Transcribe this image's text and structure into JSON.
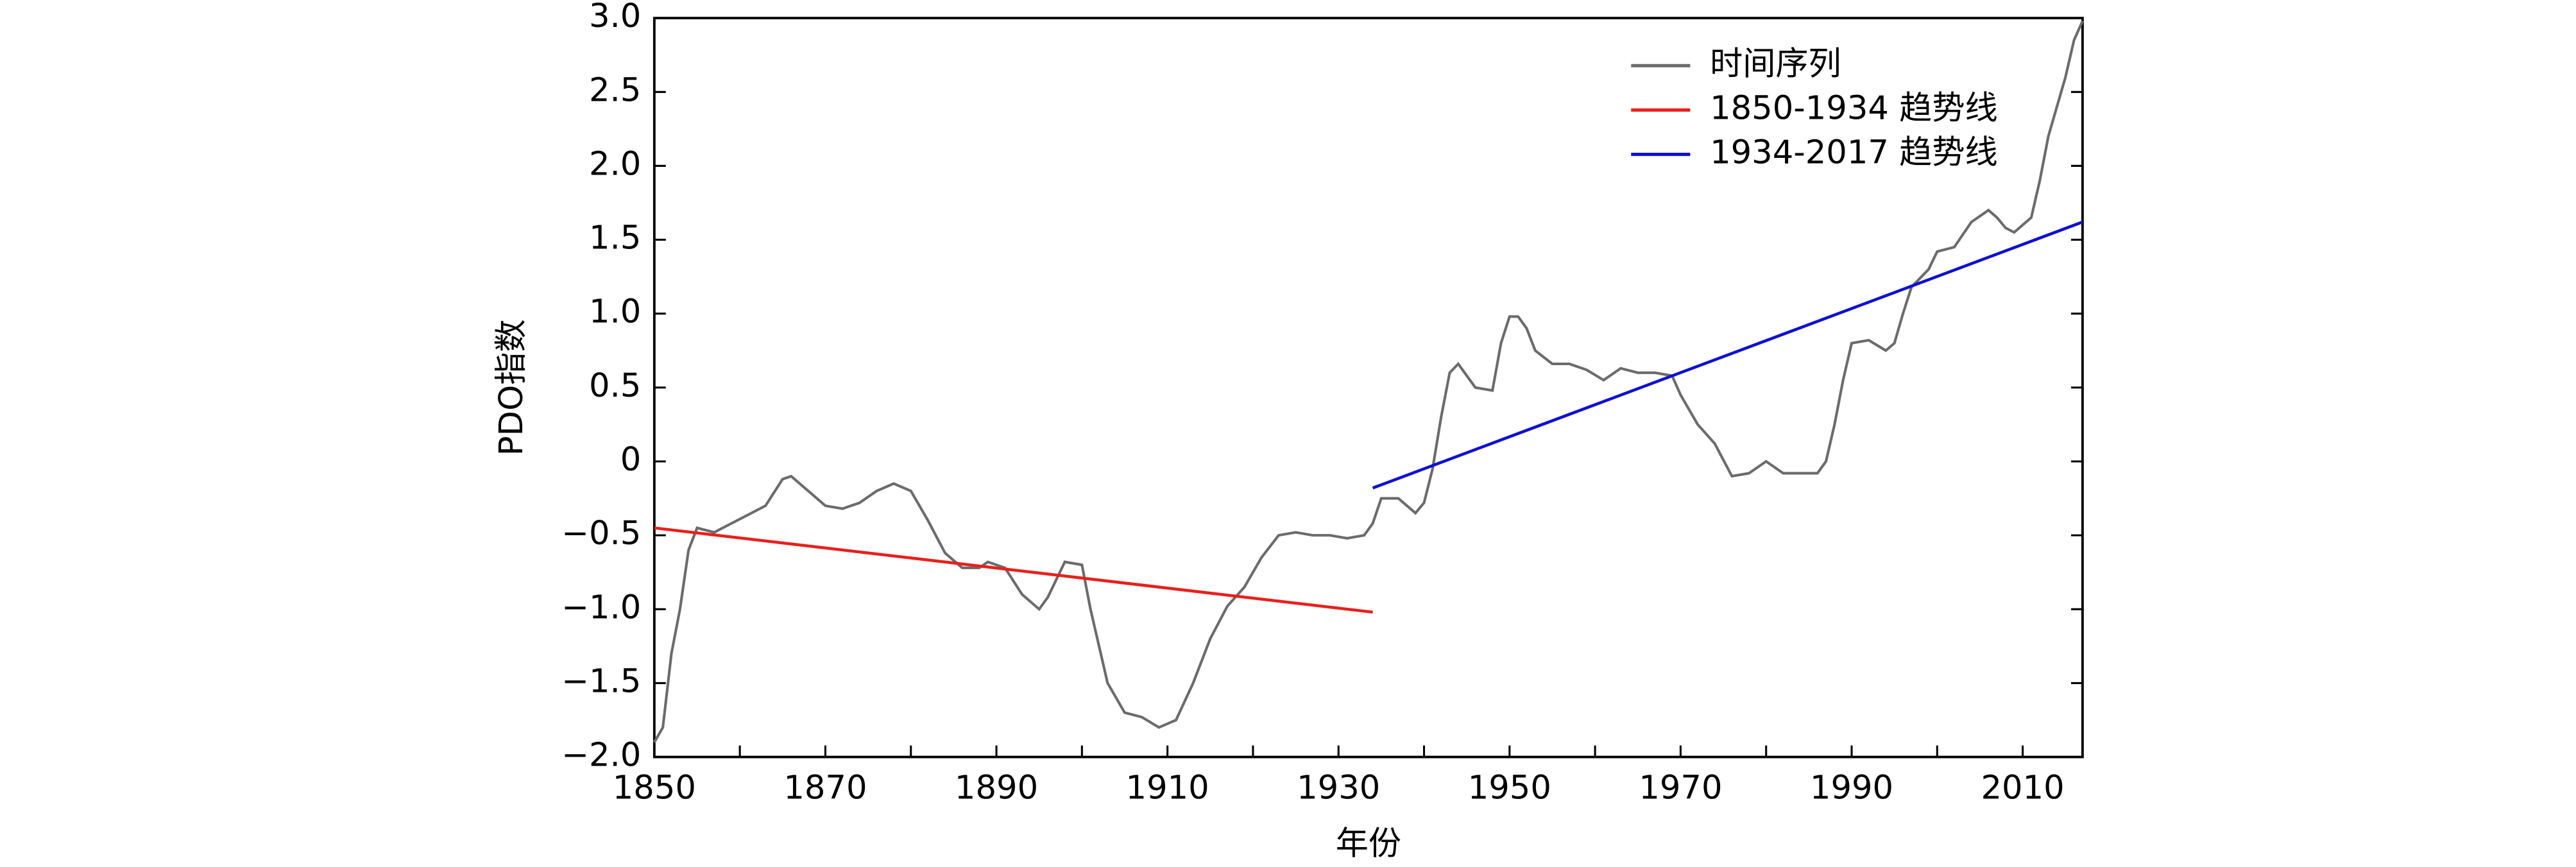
{
  "chart_data": {
    "type": "line",
    "xlabel": "年份",
    "ylabel": "PDO指数",
    "xlim": [
      1850,
      2017
    ],
    "ylim": [
      -2,
      3
    ],
    "xticks": [
      1850,
      1870,
      1890,
      1910,
      1930,
      1950,
      1970,
      1990,
      2010
    ],
    "yticks": [
      {
        "value": 3,
        "label": "3.0"
      },
      2.5,
      {
        "value": 2,
        "label": "2.0"
      },
      1.5,
      {
        "value": 1,
        "label": "1.0"
      },
      0.5,
      0,
      {
        "value": -0.5,
        "label": "−0.5"
      },
      {
        "value": -1,
        "label": "−1.0"
      },
      {
        "value": -1.5,
        "label": "−1.5"
      },
      {
        "value": -2,
        "label": "−2.0"
      }
    ],
    "legend": "upper right",
    "series": [
      {
        "name": "时间序列",
        "color": "#6b6b6b",
        "x": [
          1850,
          1851,
          1852,
          1853,
          1854,
          1855,
          1857,
          1859,
          1861,
          1863,
          1865,
          1866,
          1868,
          1870,
          1872,
          1874,
          1876,
          1878,
          1880,
          1882,
          1884,
          1886,
          1888,
          1889,
          1891,
          1893,
          1895,
          1896,
          1898,
          1900,
          1901,
          1903,
          1905,
          1907,
          1909,
          1911,
          1913,
          1915,
          1917,
          1919,
          1921,
          1923,
          1925,
          1927,
          1929,
          1931,
          1933,
          1934,
          1935,
          1937,
          1939,
          1940,
          1941,
          1942,
          1943,
          1944,
          1946,
          1948,
          1949,
          1950,
          1951,
          1952,
          1953,
          1955,
          1957,
          1959,
          1961,
          1963,
          1965,
          1967,
          1969,
          1970,
          1972,
          1974,
          1976,
          1978,
          1980,
          1982,
          1984,
          1986,
          1987,
          1988,
          1989,
          1990,
          1992,
          1994,
          1995,
          1996,
          1997,
          1999,
          2000,
          2002,
          2004,
          2006,
          2007,
          2008,
          2009,
          2011,
          2012,
          2013,
          2014,
          2015,
          2016,
          2017
        ],
        "values": [
          -1.9,
          -1.8,
          -1.3,
          -1.0,
          -0.6,
          -0.45,
          -0.48,
          -0.42,
          -0.36,
          -0.3,
          -0.12,
          -0.1,
          -0.2,
          -0.3,
          -0.32,
          -0.28,
          -0.2,
          -0.15,
          -0.2,
          -0.4,
          -0.62,
          -0.72,
          -0.72,
          -0.68,
          -0.72,
          -0.9,
          -1.0,
          -0.92,
          -0.68,
          -0.7,
          -1.0,
          -1.5,
          -1.7,
          -1.73,
          -1.8,
          -1.75,
          -1.5,
          -1.2,
          -0.98,
          -0.85,
          -0.65,
          -0.5,
          -0.48,
          -0.5,
          -0.5,
          -0.52,
          -0.5,
          -0.42,
          -0.25,
          -0.25,
          -0.35,
          -0.28,
          -0.05,
          0.3,
          0.6,
          0.66,
          0.5,
          0.48,
          0.8,
          0.98,
          0.98,
          0.9,
          0.75,
          0.66,
          0.66,
          0.62,
          0.55,
          0.63,
          0.6,
          0.6,
          0.58,
          0.45,
          0.25,
          0.12,
          -0.1,
          -0.08,
          0.0,
          -0.08,
          -0.08,
          -0.08,
          0.0,
          0.25,
          0.55,
          0.8,
          0.82,
          0.75,
          0.8,
          1.0,
          1.18,
          1.3,
          1.42,
          1.45,
          1.62,
          1.7,
          1.65,
          1.58,
          1.55,
          1.65,
          1.9,
          2.2,
          2.4,
          2.6,
          2.85,
          2.98
        ]
      },
      {
        "name": "1850-1934 趋势线",
        "color": "#e8201c",
        "x": [
          1850,
          1934
        ],
        "values": [
          -0.45,
          -1.02
        ]
      },
      {
        "name": "1934-2017 趋势线",
        "color": "#1010d0",
        "x": [
          1934,
          2017
        ],
        "values": [
          -0.18,
          1.62
        ]
      }
    ]
  }
}
